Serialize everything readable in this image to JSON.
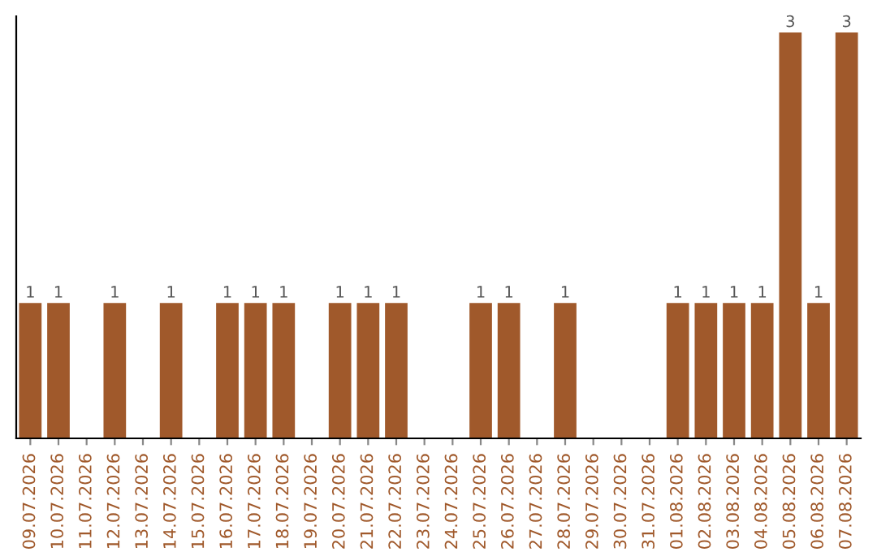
{
  "chart_data": {
    "type": "bar",
    "categories": [
      "09.07.2026",
      "10.07.2026",
      "11.07.2026",
      "12.07.2026",
      "13.07.2026",
      "14.07.2026",
      "15.07.2026",
      "16.07.2026",
      "17.07.2026",
      "18.07.2026",
      "19.07.2026",
      "20.07.2026",
      "21.07.2026",
      "22.07.2026",
      "23.07.2026",
      "24.07.2026",
      "25.07.2026",
      "26.07.2026",
      "27.07.2026",
      "28.07.2026",
      "29.07.2026",
      "30.07.2026",
      "31.07.2026",
      "01.08.2026",
      "02.08.2026",
      "03.08.2026",
      "04.08.2026",
      "05.08.2026",
      "06.08.2026",
      "07.08.2026"
    ],
    "values": [
      1,
      1,
      0,
      1,
      0,
      1,
      0,
      1,
      1,
      1,
      0,
      1,
      1,
      1,
      0,
      0,
      1,
      1,
      0,
      1,
      0,
      0,
      0,
      1,
      1,
      1,
      1,
      3,
      1,
      3
    ],
    "value_labels": [
      "1",
      "1",
      null,
      "1",
      null,
      "1",
      null,
      "1",
      "1",
      "1",
      null,
      "1",
      "1",
      "1",
      null,
      null,
      "1",
      "1",
      null,
      "1",
      null,
      null,
      null,
      "1",
      "1",
      "1",
      "1",
      "3",
      "1",
      "3"
    ],
    "color": "#a0592b",
    "tick_labels": "x",
    "grid": false,
    "legend": false
  }
}
